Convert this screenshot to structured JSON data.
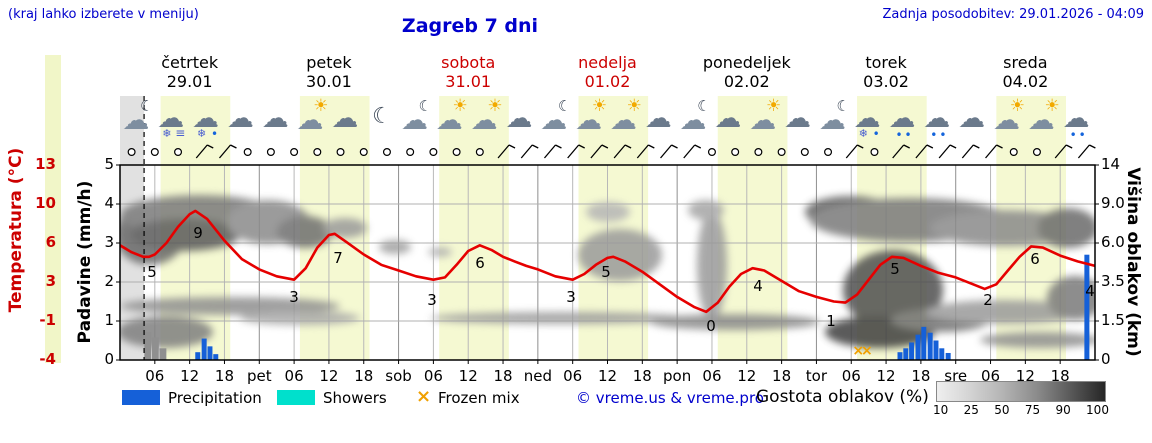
{
  "header": {
    "menu_hint": "(kraj lahko izberete v meniju)",
    "title": "Zagreb 7 dni",
    "last_update": "Zadnja posodobitev: 29.01.2026 - 04:09"
  },
  "days": [
    {
      "name": "četrtek",
      "date": "29.01",
      "weekend": false
    },
    {
      "name": "petek",
      "date": "30.01",
      "weekend": false
    },
    {
      "name": "sobota",
      "date": "31.01",
      "weekend": true
    },
    {
      "name": "nedelja",
      "date": "01.02",
      "weekend": true
    },
    {
      "name": "ponedeljek",
      "date": "02.02",
      "weekend": false
    },
    {
      "name": "torek",
      "date": "03.02",
      "weekend": false
    },
    {
      "name": "sreda",
      "date": "04.02",
      "weekend": false
    }
  ],
  "axes": {
    "temp": {
      "label": "Temperatura (°C)",
      "ticks": [
        "13",
        "10",
        "6",
        "3",
        "-1",
        "-4"
      ]
    },
    "precip": {
      "label": "Padavine (mm/h)",
      "ticks": [
        "5",
        "4",
        "3",
        "2",
        "1",
        "0"
      ]
    },
    "cloud_height": {
      "label": "Višina oblakov (km)",
      "ticks": [
        "14",
        "9.0",
        "6.0",
        "3.5",
        "1.5",
        "0"
      ]
    },
    "x_ticks": [
      {
        "t": "06",
        "h": 6
      },
      {
        "t": "12",
        "h": 12
      },
      {
        "t": "18",
        "h": 18
      },
      {
        "t": "pet",
        "h": 24
      },
      {
        "t": "06",
        "h": 30
      },
      {
        "t": "12",
        "h": 36
      },
      {
        "t": "18",
        "h": 42
      },
      {
        "t": "sob",
        "h": 48
      },
      {
        "t": "06",
        "h": 54
      },
      {
        "t": "12",
        "h": 60
      },
      {
        "t": "18",
        "h": 66
      },
      {
        "t": "ned",
        "h": 72
      },
      {
        "t": "06",
        "h": 78
      },
      {
        "t": "12",
        "h": 84
      },
      {
        "t": "18",
        "h": 90
      },
      {
        "t": "pon",
        "h": 96
      },
      {
        "t": "06",
        "h": 102
      },
      {
        "t": "12",
        "h": 108
      },
      {
        "t": "18",
        "h": 114
      },
      {
        "t": "tor",
        "h": 120
      },
      {
        "t": "06",
        "h": 126
      },
      {
        "t": "12",
        "h": 132
      },
      {
        "t": "18",
        "h": 138
      },
      {
        "t": "sre",
        "h": 144
      },
      {
        "t": "06",
        "h": 150
      },
      {
        "t": "12",
        "h": 156
      },
      {
        "t": "18",
        "h": 162
      }
    ]
  },
  "legend": {
    "precipitation": "Precipitation",
    "showers": "Showers",
    "frozen_mix": "Frozen mix",
    "frozen_symbol": "×",
    "credit": "© vreme.us & vreme.pro",
    "cloud_density_label": "Gostota oblakov (%)",
    "cloud_density_ticks": [
      "10",
      "25",
      "50",
      "75",
      "90",
      "100"
    ]
  },
  "colors": {
    "link_blue": "#0000cc",
    "weekend_red": "#cc0000",
    "temp_line": "#e60000",
    "precip_blue": "#1560d8",
    "showers_cyan": "#00e0cc",
    "frozen_orange": "#f0a000",
    "day_band": "#f5f9d2",
    "past_grey": "#c8c8c8"
  },
  "chart_data": {
    "type": "line",
    "title": "Zagreb 7 dni",
    "x_range_hours": [
      0,
      168
    ],
    "temp_axis_c": [
      -4,
      13
    ],
    "precip_axis_mm": [
      0,
      5
    ],
    "cloud_axis_km": [
      0,
      14
    ],
    "grid": true,
    "current_time_hour": 4.15,
    "day_bands_hours": [
      [
        7,
        19
      ],
      [
        31,
        43
      ],
      [
        55,
        67
      ],
      [
        79,
        91
      ],
      [
        103,
        115
      ],
      [
        127,
        139
      ],
      [
        151,
        163
      ]
    ],
    "temperature_points": [
      [
        0,
        6.0
      ],
      [
        2,
        5.4
      ],
      [
        4,
        5.0
      ],
      [
        5,
        5.0
      ],
      [
        6,
        5.2
      ],
      [
        8,
        6.2
      ],
      [
        10,
        7.6
      ],
      [
        12,
        8.7
      ],
      [
        13,
        9.0
      ],
      [
        15,
        8.3
      ],
      [
        18,
        6.4
      ],
      [
        21,
        4.8
      ],
      [
        24,
        3.9
      ],
      [
        27,
        3.3
      ],
      [
        30,
        3.0
      ],
      [
        32,
        4.0
      ],
      [
        34,
        5.8
      ],
      [
        36,
        6.9
      ],
      [
        37,
        7.0
      ],
      [
        39,
        6.3
      ],
      [
        42,
        5.2
      ],
      [
        45,
        4.3
      ],
      [
        48,
        3.8
      ],
      [
        51,
        3.3
      ],
      [
        54,
        3.0
      ],
      [
        56,
        3.2
      ],
      [
        58,
        4.3
      ],
      [
        60,
        5.5
      ],
      [
        62,
        6.0
      ],
      [
        64,
        5.6
      ],
      [
        66,
        5.0
      ],
      [
        68,
        4.6
      ],
      [
        70,
        4.2
      ],
      [
        72,
        3.9
      ],
      [
        75,
        3.3
      ],
      [
        78,
        3.0
      ],
      [
        80,
        3.5
      ],
      [
        82,
        4.3
      ],
      [
        84,
        4.9
      ],
      [
        85,
        5.0
      ],
      [
        87,
        4.6
      ],
      [
        90,
        3.7
      ],
      [
        93,
        2.6
      ],
      [
        96,
        1.5
      ],
      [
        99,
        0.6
      ],
      [
        101,
        0.2
      ],
      [
        103,
        1.0
      ],
      [
        105,
        2.4
      ],
      [
        107,
        3.5
      ],
      [
        109,
        4.0
      ],
      [
        111,
        3.8
      ],
      [
        114,
        2.9
      ],
      [
        117,
        2.0
      ],
      [
        120,
        1.5
      ],
      [
        123,
        1.1
      ],
      [
        125,
        1.0
      ],
      [
        127,
        1.7
      ],
      [
        129,
        3.0
      ],
      [
        131,
        4.3
      ],
      [
        133,
        5.0
      ],
      [
        135,
        4.9
      ],
      [
        138,
        4.2
      ],
      [
        141,
        3.6
      ],
      [
        144,
        3.2
      ],
      [
        147,
        2.6
      ],
      [
        149,
        2.2
      ],
      [
        151,
        2.6
      ],
      [
        153,
        3.8
      ],
      [
        155,
        5.0
      ],
      [
        157,
        5.9
      ],
      [
        159,
        5.8
      ],
      [
        162,
        5.1
      ],
      [
        165,
        4.6
      ],
      [
        168,
        4.2
      ]
    ],
    "temp_point_labels": [
      {
        "v": "5",
        "x": 152,
        "y": 277
      },
      {
        "v": "9",
        "x": 198,
        "y": 238
      },
      {
        "v": "3",
        "x": 294,
        "y": 302
      },
      {
        "v": "7",
        "x": 338,
        "y": 263
      },
      {
        "v": "3",
        "x": 432,
        "y": 305
      },
      {
        "v": "6",
        "x": 480,
        "y": 268
      },
      {
        "v": "3",
        "x": 571,
        "y": 302
      },
      {
        "v": "5",
        "x": 606,
        "y": 277
      },
      {
        "v": "0",
        "x": 711,
        "y": 331
      },
      {
        "v": "4",
        "x": 758,
        "y": 291
      },
      {
        "v": "1",
        "x": 831,
        "y": 326
      },
      {
        "v": "5",
        "x": 895,
        "y": 274
      },
      {
        "v": "2",
        "x": 988,
        "y": 305
      },
      {
        "v": "6",
        "x": 1035,
        "y": 264
      },
      {
        "v": "4",
        "x": 1090,
        "y": 296
      }
    ],
    "precip_bars": [
      {
        "h": 13.4,
        "mm": 0.2
      },
      {
        "h": 14.5,
        "mm": 0.55
      },
      {
        "h": 15.5,
        "mm": 0.35
      },
      {
        "h": 16.5,
        "mm": 0.15
      },
      {
        "h": 134.4,
        "mm": 0.2
      },
      {
        "h": 135.4,
        "mm": 0.3
      },
      {
        "h": 136.4,
        "mm": 0.45
      },
      {
        "h": 137.5,
        "mm": 0.65
      },
      {
        "h": 138.5,
        "mm": 0.85
      },
      {
        "h": 139.6,
        "mm": 0.7
      },
      {
        "h": 140.6,
        "mm": 0.5
      },
      {
        "h": 141.6,
        "mm": 0.3
      },
      {
        "h": 142.7,
        "mm": 0.18
      },
      {
        "h": 166.6,
        "mm": 2.7
      }
    ],
    "past_precip_bars": [
      {
        "h": 4.7,
        "mm": 0.72
      },
      {
        "h": 6.0,
        "mm": 0.58
      },
      {
        "h": 7.3,
        "mm": 0.3
      }
    ],
    "frozen_mix_hours": [
      127.2,
      128.7
    ],
    "weather_icons": [
      {
        "h": 3,
        "type": "moon-cloud"
      },
      {
        "h": 9,
        "type": "snow-cloud"
      },
      {
        "h": 15,
        "type": "sleet-cloud"
      },
      {
        "h": 21,
        "type": "cloud"
      },
      {
        "h": 27,
        "type": "cloud"
      },
      {
        "h": 33,
        "type": "sun-cloud"
      },
      {
        "h": 39,
        "type": "cloud"
      },
      {
        "h": 45,
        "type": "moon"
      },
      {
        "h": 51,
        "type": "moon-cloud"
      },
      {
        "h": 57,
        "type": "sun-cloud"
      },
      {
        "h": 63,
        "type": "sun-cloud"
      },
      {
        "h": 69,
        "type": "cloud"
      },
      {
        "h": 75,
        "type": "moon-cloud"
      },
      {
        "h": 81,
        "type": "sun-cloud"
      },
      {
        "h": 87,
        "type": "sun-cloud"
      },
      {
        "h": 93,
        "type": "cloud"
      },
      {
        "h": 99,
        "type": "moon-cloud"
      },
      {
        "h": 105,
        "type": "cloud"
      },
      {
        "h": 111,
        "type": "sun-cloud"
      },
      {
        "h": 117,
        "type": "cloud"
      },
      {
        "h": 123,
        "type": "moon-cloud"
      },
      {
        "h": 129,
        "type": "sleet-cloud"
      },
      {
        "h": 135,
        "type": "rain-cloud"
      },
      {
        "h": 141,
        "type": "rain-cloud"
      },
      {
        "h": 147,
        "type": "cloud"
      },
      {
        "h": 153,
        "type": "sun-cloud"
      },
      {
        "h": 159,
        "type": "sun-cloud"
      },
      {
        "h": 165,
        "type": "rain-cloud"
      }
    ],
    "wind": [
      {
        "h": 2,
        "type": "calm"
      },
      {
        "h": 6,
        "type": "calm"
      },
      {
        "h": 10,
        "type": "calm"
      },
      {
        "h": 14,
        "type": "barb"
      },
      {
        "h": 18,
        "type": "barb"
      },
      {
        "h": 22,
        "type": "calm"
      },
      {
        "h": 26,
        "type": "calm"
      },
      {
        "h": 30,
        "type": "calm"
      },
      {
        "h": 34,
        "type": "calm"
      },
      {
        "h": 38,
        "type": "calm"
      },
      {
        "h": 42,
        "type": "calm"
      },
      {
        "h": 46,
        "type": "calm"
      },
      {
        "h": 50,
        "type": "calm"
      },
      {
        "h": 54,
        "type": "calm"
      },
      {
        "h": 58,
        "type": "calm"
      },
      {
        "h": 62,
        "type": "calm"
      },
      {
        "h": 66,
        "type": "barb"
      },
      {
        "h": 70,
        "type": "barb"
      },
      {
        "h": 74,
        "type": "barb"
      },
      {
        "h": 78,
        "type": "barb"
      },
      {
        "h": 82,
        "type": "barb"
      },
      {
        "h": 86,
        "type": "barb"
      },
      {
        "h": 90,
        "type": "barb"
      },
      {
        "h": 94,
        "type": "barb"
      },
      {
        "h": 98,
        "type": "barb"
      },
      {
        "h": 102,
        "type": "calm"
      },
      {
        "h": 106,
        "type": "calm"
      },
      {
        "h": 110,
        "type": "calm"
      },
      {
        "h": 114,
        "type": "calm"
      },
      {
        "h": 118,
        "type": "calm"
      },
      {
        "h": 122,
        "type": "calm"
      },
      {
        "h": 126,
        "type": "barb"
      },
      {
        "h": 130,
        "type": "calm"
      },
      {
        "h": 134,
        "type": "barb"
      },
      {
        "h": 138,
        "type": "barb"
      },
      {
        "h": 142,
        "type": "barb"
      },
      {
        "h": 146,
        "type": "barb"
      },
      {
        "h": 150,
        "type": "barb"
      },
      {
        "h": 154,
        "type": "calm"
      },
      {
        "h": 158,
        "type": "calm"
      },
      {
        "h": 162,
        "type": "barb"
      },
      {
        "h": 166,
        "type": "barb"
      }
    ],
    "clouds": [
      {
        "cx": 150,
        "cy": 235,
        "rx": 35,
        "ry": 30,
        "f": "#6a6a6a"
      },
      {
        "cx": 200,
        "cy": 215,
        "rx": 80,
        "ry": 20,
        "f": "#7a7a7a"
      },
      {
        "cx": 185,
        "cy": 235,
        "rx": 55,
        "ry": 16,
        "f": "#5a5a5a"
      },
      {
        "cx": 268,
        "cy": 222,
        "rx": 42,
        "ry": 22,
        "f": "#8a8a8a"
      },
      {
        "cx": 305,
        "cy": 232,
        "rx": 28,
        "ry": 16,
        "f": "#6f6f6f"
      },
      {
        "cx": 345,
        "cy": 228,
        "rx": 22,
        "ry": 10,
        "f": "#9a9a9a"
      },
      {
        "cx": 230,
        "cy": 306,
        "rx": 110,
        "ry": 9,
        "f": "#8f8f8f"
      },
      {
        "cx": 165,
        "cy": 332,
        "rx": 48,
        "ry": 16,
        "f": "#7f7f7f"
      },
      {
        "cx": 300,
        "cy": 318,
        "rx": 60,
        "ry": 7,
        "f": "#a8a8a8"
      },
      {
        "cx": 395,
        "cy": 247,
        "rx": 16,
        "ry": 7,
        "f": "#9f9f9f"
      },
      {
        "cx": 440,
        "cy": 252,
        "rx": 12,
        "ry": 5,
        "f": "#b0b0b0"
      },
      {
        "cx": 560,
        "cy": 318,
        "rx": 130,
        "ry": 6,
        "f": "#9b9b9b"
      },
      {
        "cx": 620,
        "cy": 255,
        "rx": 42,
        "ry": 26,
        "f": "#9a9a9a"
      },
      {
        "cx": 608,
        "cy": 212,
        "rx": 22,
        "ry": 10,
        "f": "#b5b5b5"
      },
      {
        "cx": 712,
        "cy": 265,
        "rx": 15,
        "ry": 55,
        "f": "#9a9a9a"
      },
      {
        "cx": 706,
        "cy": 210,
        "rx": 18,
        "ry": 10,
        "f": "#a5a5a5"
      },
      {
        "cx": 735,
        "cy": 322,
        "rx": 85,
        "ry": 8,
        "f": "#8a8a8a"
      },
      {
        "cx": 850,
        "cy": 212,
        "rx": 45,
        "ry": 16,
        "f": "#5f5f5f"
      },
      {
        "cx": 910,
        "cy": 220,
        "rx": 100,
        "ry": 22,
        "f": "#7a7a7a"
      },
      {
        "cx": 1005,
        "cy": 228,
        "rx": 75,
        "ry": 18,
        "f": "#8a8a8a"
      },
      {
        "cx": 1068,
        "cy": 228,
        "rx": 30,
        "ry": 20,
        "f": "#6a6a6a"
      },
      {
        "cx": 893,
        "cy": 290,
        "rx": 50,
        "ry": 40,
        "f": "#4f4f4f"
      },
      {
        "cx": 880,
        "cy": 332,
        "rx": 55,
        "ry": 16,
        "f": "#3f3f3f"
      },
      {
        "cx": 940,
        "cy": 320,
        "rx": 50,
        "ry": 12,
        "f": "#6f6f6f"
      },
      {
        "cx": 1005,
        "cy": 312,
        "rx": 80,
        "ry": 12,
        "f": "#9a9a9a"
      },
      {
        "cx": 1075,
        "cy": 298,
        "rx": 28,
        "ry": 22,
        "f": "#7a7a7a"
      },
      {
        "cx": 1040,
        "cy": 340,
        "rx": 60,
        "ry": 8,
        "f": "#8f8f8f"
      }
    ]
  }
}
